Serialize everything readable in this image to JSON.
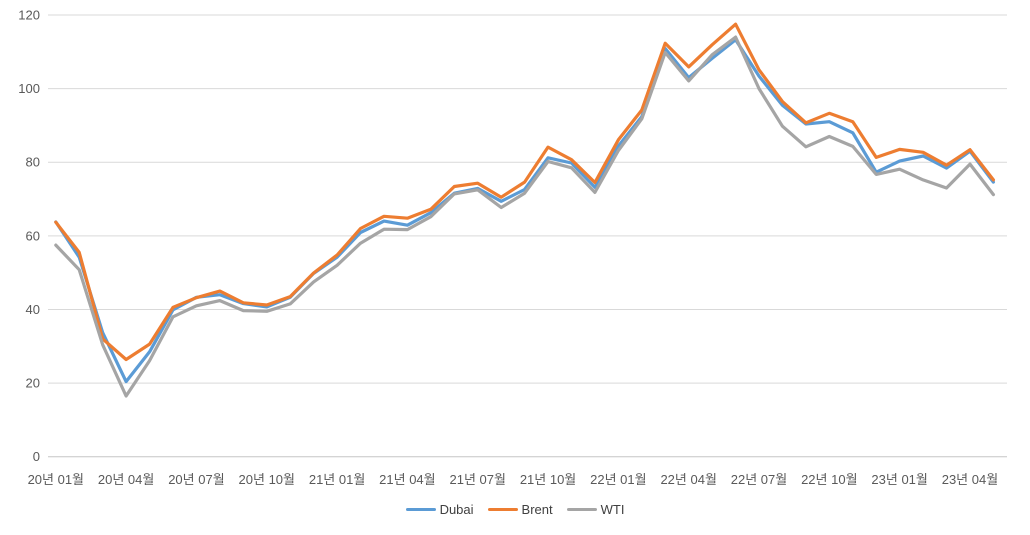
{
  "chart_data": {
    "type": "line",
    "title": "",
    "xlabel": "",
    "ylabel": "",
    "ylim": [
      0,
      120
    ],
    "y_ticks": [
      0,
      20,
      40,
      60,
      80,
      100,
      120
    ],
    "grid": true,
    "legend_position": "bottom",
    "gridline_color": "#D9D9D9",
    "axis_line_color": "#C6C6C6",
    "axis_text_color": "#595959",
    "tick_every": 3,
    "x_labels": [
      "20년 01월",
      "20년 02월",
      "20년 03월",
      "20년 04월",
      "20년 05월",
      "20년 06월",
      "20년 07월",
      "20년 08월",
      "20년 09월",
      "20년 10월",
      "20년 11월",
      "20년 12월",
      "21년 01월",
      "21년 02월",
      "21년 03월",
      "21년 04월",
      "21년 05월",
      "21년 06월",
      "21년 07월",
      "21년 08월",
      "21년 09월",
      "21년 10월",
      "21년 11월",
      "21년 12월",
      "22년 01월",
      "22년 02월",
      "22년 03월",
      "22년 04월",
      "22년 05월",
      "22년 06월",
      "22년 07월",
      "22년 08월",
      "22년 09월",
      "22년 10월",
      "22년 11월",
      "22년 12월",
      "23년 01월",
      "23년 02월",
      "23년 03월",
      "23년 04월",
      "23년 05월"
    ],
    "visible_tick_labels": [
      "20년 01월",
      "20년 04월",
      "20년 07월",
      "20년 10월",
      "21년 01월",
      "21년 04월",
      "21년 07월",
      "21년 10월",
      "22년 01월",
      "22년 04월",
      "22년 07월",
      "22년 10월",
      "23년 01월",
      "23년 04월"
    ],
    "series": [
      {
        "name": "Dubai",
        "color": "#5B9BD5",
        "values": [
          63.8,
          54.2,
          33.7,
          20.4,
          28.5,
          39.9,
          43.3,
          44.0,
          41.6,
          40.7,
          43.3,
          49.8,
          54.2,
          60.9,
          64.0,
          62.9,
          66.3,
          71.6,
          72.9,
          69.4,
          72.6,
          81.2,
          79.8,
          73.2,
          84.4,
          92.4,
          110.9,
          103.0,
          108.2,
          113.3,
          103.4,
          95.5,
          90.4,
          91.0,
          88.0,
          77.3,
          80.3,
          81.7,
          78.4,
          83.0,
          74.6
        ]
      },
      {
        "name": "Brent",
        "color": "#ED7D31",
        "values": [
          63.7,
          55.5,
          32.0,
          26.4,
          30.6,
          40.6,
          43.2,
          45.0,
          41.8,
          41.2,
          43.5,
          49.9,
          54.8,
          62.0,
          65.3,
          64.8,
          67.2,
          73.4,
          74.3,
          70.5,
          74.6,
          84.1,
          80.7,
          74.5,
          86.1,
          94.2,
          112.3,
          105.9,
          111.9,
          117.5,
          105.1,
          96.5,
          90.7,
          93.3,
          91.0,
          81.3,
          83.5,
          82.7,
          79.2,
          83.4,
          75.2
        ]
      },
      {
        "name": "WTI",
        "color": "#A5A5A5",
        "values": [
          57.5,
          50.8,
          30.4,
          16.5,
          26.1,
          38.0,
          41.0,
          42.4,
          39.7,
          39.5,
          41.5,
          47.5,
          52.0,
          58.0,
          61.8,
          61.7,
          65.2,
          71.4,
          72.5,
          67.7,
          71.6,
          80.2,
          78.5,
          71.8,
          83.2,
          91.8,
          109.8,
          102.1,
          109.2,
          114.0,
          100.0,
          89.8,
          84.2,
          87.0,
          84.3,
          76.7,
          78.1,
          75.2,
          73.0,
          79.5,
          71.2
        ]
      }
    ]
  },
  "legend": {
    "items": [
      {
        "label": "Dubai",
        "color": "#5B9BD5"
      },
      {
        "label": "Brent",
        "color": "#ED7D31"
      },
      {
        "label": "WTI",
        "color": "#A5A5A5"
      }
    ]
  }
}
